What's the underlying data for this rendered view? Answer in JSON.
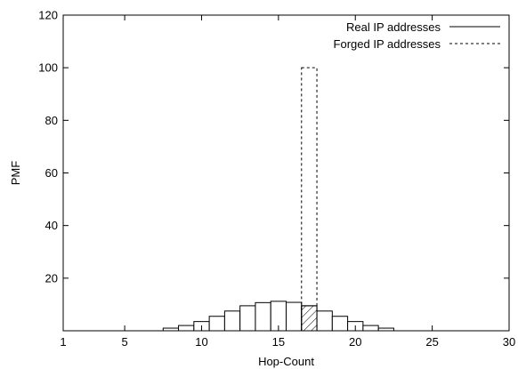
{
  "chart_data": {
    "type": "bar",
    "title": "",
    "xlabel": "Hop-Count",
    "ylabel": "PMF",
    "xlim": [
      1,
      30
    ],
    "ylim": [
      0,
      120
    ],
    "x_ticks": [
      1,
      5,
      10,
      15,
      20,
      25,
      30
    ],
    "y_ticks": [
      20,
      40,
      60,
      80,
      100,
      120
    ],
    "legend_position": "top-right",
    "series": [
      {
        "name": "Real IP addresses",
        "line_style": "solid",
        "x": [
          8,
          9,
          10,
          11,
          12,
          13,
          14,
          15,
          16,
          17,
          18,
          19,
          20,
          21,
          22
        ],
        "values": [
          1,
          2,
          3.5,
          5.5,
          7.5,
          9.5,
          10.7,
          11.2,
          10.8,
          9.5,
          7.5,
          5.5,
          3.5,
          2,
          1
        ]
      },
      {
        "name": "Forged IP addresses",
        "line_style": "dashed",
        "x": [
          17
        ],
        "values": [
          100
        ]
      }
    ],
    "annotations": [
      {
        "type": "hatched-overlap",
        "x": 17,
        "value": 9.5
      }
    ],
    "grid": false
  }
}
